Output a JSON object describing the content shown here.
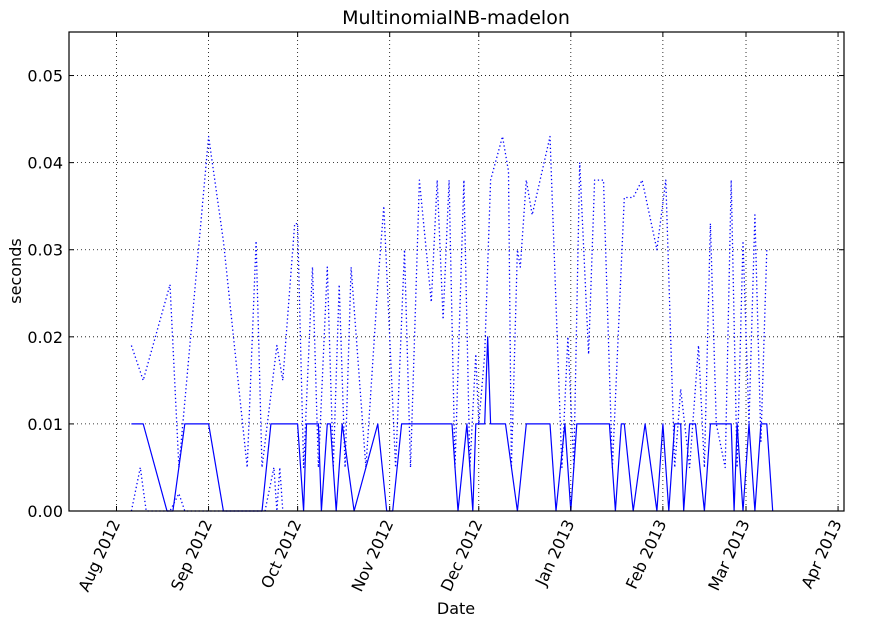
{
  "chart_data": {
    "type": "line",
    "title": "MultinomialNB-madelon",
    "xlabel": "Date",
    "ylabel": "seconds",
    "x_axis": "date",
    "xlim": [
      "2012-07-16",
      "2013-04-03"
    ],
    "ylim": [
      0,
      0.055
    ],
    "yticks": [
      0.0,
      0.01,
      0.02,
      0.03,
      0.04,
      0.05
    ],
    "ytick_labels": [
      "0.00",
      "0.01",
      "0.02",
      "0.03",
      "0.04",
      "0.05"
    ],
    "xticks": [
      "2012-08-01",
      "2012-09-01",
      "2012-10-01",
      "2012-11-01",
      "2012-12-01",
      "2013-01-01",
      "2013-02-01",
      "2013-03-01",
      "2013-04-01"
    ],
    "xtick_labels": [
      "Aug 2012",
      "Sep 2012",
      "Oct 2012",
      "Nov 2012",
      "Dec 2012",
      "Jan 2013",
      "Feb 2013",
      "Mar 2013",
      "Apr 2013"
    ],
    "grid": true,
    "colors": {
      "series": "#0000ff",
      "frame": "#000000",
      "grid": "#000000"
    },
    "series": [
      {
        "style": "solid",
        "points": [
          [
            "2012-08-06",
            0.01
          ],
          [
            "2012-08-10",
            0.01
          ],
          [
            "2012-08-18",
            0.0
          ],
          [
            "2012-08-20",
            0.0
          ],
          [
            "2012-08-24",
            0.01
          ],
          [
            "2012-09-01",
            0.01
          ],
          [
            "2012-09-06",
            0.0
          ],
          [
            "2012-09-19",
            0.0
          ],
          [
            "2012-09-22",
            0.01
          ],
          [
            "2012-10-01",
            0.01
          ],
          [
            "2012-10-03",
            0.0
          ],
          [
            "2012-10-04",
            0.01
          ],
          [
            "2012-10-08",
            0.01
          ],
          [
            "2012-10-09",
            0.0
          ],
          [
            "2012-10-11",
            0.01
          ],
          [
            "2012-10-12",
            0.01
          ],
          [
            "2012-10-14",
            0.0
          ],
          [
            "2012-10-16",
            0.01
          ],
          [
            "2012-10-20",
            0.0
          ],
          [
            "2012-10-28",
            0.01
          ],
          [
            "2012-10-31",
            0.0
          ],
          [
            "2012-11-02",
            0.0
          ],
          [
            "2012-11-05",
            0.01
          ],
          [
            "2012-11-22",
            0.01
          ],
          [
            "2012-11-24",
            0.0
          ],
          [
            "2012-11-27",
            0.01
          ],
          [
            "2012-11-29",
            0.0
          ],
          [
            "2012-11-30",
            0.01
          ],
          [
            "2012-12-03",
            0.01
          ],
          [
            "2012-12-04",
            0.02
          ],
          [
            "2012-12-05",
            0.01
          ],
          [
            "2012-12-10",
            0.01
          ],
          [
            "2012-12-14",
            0.0
          ],
          [
            "2012-12-17",
            0.01
          ],
          [
            "2012-12-25",
            0.01
          ],
          [
            "2012-12-27",
            0.0
          ],
          [
            "2012-12-30",
            0.01
          ],
          [
            "2013-01-01",
            0.0
          ],
          [
            "2013-01-03",
            0.01
          ],
          [
            "2013-01-14",
            0.01
          ],
          [
            "2013-01-16",
            0.0
          ],
          [
            "2013-01-18",
            0.01
          ],
          [
            "2013-01-19",
            0.01
          ],
          [
            "2013-01-22",
            0.0
          ],
          [
            "2013-01-26",
            0.01
          ],
          [
            "2013-01-30",
            0.0
          ],
          [
            "2013-02-01",
            0.01
          ],
          [
            "2013-02-03",
            0.0
          ],
          [
            "2013-02-05",
            0.01
          ],
          [
            "2013-02-07",
            0.01
          ],
          [
            "2013-02-08",
            0.0
          ],
          [
            "2013-02-10",
            0.01
          ],
          [
            "2013-02-12",
            0.01
          ],
          [
            "2013-02-15",
            0.0
          ],
          [
            "2013-02-17",
            0.01
          ],
          [
            "2013-02-24",
            0.01
          ],
          [
            "2013-02-25",
            0.0
          ],
          [
            "2013-02-26",
            0.01
          ],
          [
            "2013-02-28",
            0.0
          ],
          [
            "2013-03-02",
            0.01
          ],
          [
            "2013-03-04",
            0.0
          ],
          [
            "2013-03-06",
            0.01
          ],
          [
            "2013-03-08",
            0.01
          ],
          [
            "2013-03-10",
            0.0
          ]
        ]
      },
      {
        "style": "dotted",
        "points": [
          [
            "2012-08-06",
            0.0
          ],
          [
            "2012-08-09",
            0.005
          ],
          [
            "2012-08-11",
            0.0
          ],
          [
            "2012-08-19",
            0.0
          ],
          [
            "2012-08-22",
            0.002
          ],
          [
            "2012-08-24",
            0.0
          ],
          [
            "2012-09-03",
            0.0
          ],
          [
            "2012-09-10",
            0.0
          ],
          [
            "2012-09-20",
            0.0
          ],
          [
            "2012-09-23",
            0.005
          ],
          [
            "2012-09-24",
            0.0
          ],
          [
            "2012-09-25",
            0.005
          ],
          [
            "2012-09-26",
            0.0
          ]
        ]
      },
      {
        "style": "dotted",
        "points": [
          [
            "2012-08-06",
            0.019
          ],
          [
            "2012-08-10",
            0.015
          ],
          [
            "2012-08-19",
            0.026
          ],
          [
            "2012-08-22",
            0.005
          ],
          [
            "2012-09-01",
            0.043
          ],
          [
            "2012-09-06",
            0.031
          ],
          [
            "2012-09-14",
            0.005
          ],
          [
            "2012-09-17",
            0.031
          ],
          [
            "2012-09-19",
            0.005
          ],
          [
            "2012-09-24",
            0.019
          ],
          [
            "2012-09-26",
            0.015
          ],
          [
            "2012-09-30",
            0.033
          ],
          [
            "2012-10-01",
            0.033
          ],
          [
            "2012-10-03",
            0.005
          ],
          [
            "2012-10-06",
            0.028
          ],
          [
            "2012-10-08",
            0.005
          ],
          [
            "2012-10-11",
            0.028
          ],
          [
            "2012-10-13",
            0.005
          ],
          [
            "2012-10-15",
            0.026
          ],
          [
            "2012-10-17",
            0.005
          ],
          [
            "2012-10-19",
            0.028
          ],
          [
            "2012-10-24",
            0.005
          ],
          [
            "2012-10-28",
            0.026
          ],
          [
            "2012-10-30",
            0.035
          ],
          [
            "2012-11-03",
            0.005
          ],
          [
            "2012-11-06",
            0.03
          ],
          [
            "2012-11-08",
            0.005
          ],
          [
            "2012-11-11",
            0.038
          ],
          [
            "2012-11-15",
            0.024
          ],
          [
            "2012-11-17",
            0.038
          ],
          [
            "2012-11-19",
            0.022
          ],
          [
            "2012-11-21",
            0.038
          ],
          [
            "2012-11-23",
            0.005
          ],
          [
            "2012-11-26",
            0.038
          ],
          [
            "2012-11-28",
            0.005
          ],
          [
            "2012-11-30",
            0.018
          ],
          [
            "2012-12-01",
            0.01
          ],
          [
            "2012-12-03",
            0.018
          ],
          [
            "2012-12-05",
            0.038
          ],
          [
            "2012-12-09",
            0.043
          ],
          [
            "2012-12-11",
            0.039
          ],
          [
            "2012-12-12",
            0.005
          ],
          [
            "2012-12-14",
            0.03
          ],
          [
            "2012-12-15",
            0.028
          ],
          [
            "2012-12-17",
            0.038
          ],
          [
            "2012-12-19",
            0.034
          ],
          [
            "2012-12-25",
            0.043
          ],
          [
            "2012-12-29",
            0.005
          ],
          [
            "2012-12-31",
            0.02
          ],
          [
            "2013-01-02",
            0.005
          ],
          [
            "2013-01-04",
            0.04
          ],
          [
            "2013-01-07",
            0.018
          ],
          [
            "2013-01-09",
            0.038
          ],
          [
            "2013-01-12",
            0.038
          ],
          [
            "2013-01-15",
            0.005
          ],
          [
            "2013-01-19",
            0.036
          ],
          [
            "2013-01-22",
            0.036
          ],
          [
            "2013-01-25",
            0.038
          ],
          [
            "2013-01-30",
            0.03
          ],
          [
            "2013-02-02",
            0.038
          ],
          [
            "2013-02-05",
            0.005
          ],
          [
            "2013-02-07",
            0.014
          ],
          [
            "2013-02-10",
            0.005
          ],
          [
            "2013-02-13",
            0.019
          ],
          [
            "2013-02-15",
            0.005
          ],
          [
            "2013-02-17",
            0.033
          ],
          [
            "2013-02-19",
            0.01
          ],
          [
            "2013-02-22",
            0.005
          ],
          [
            "2013-02-24",
            0.038
          ],
          [
            "2013-02-26",
            0.005
          ],
          [
            "2013-02-28",
            0.031
          ],
          [
            "2013-03-02",
            0.01
          ],
          [
            "2013-03-04",
            0.034
          ],
          [
            "2013-03-06",
            0.008
          ],
          [
            "2013-03-08",
            0.03
          ]
        ]
      }
    ]
  }
}
